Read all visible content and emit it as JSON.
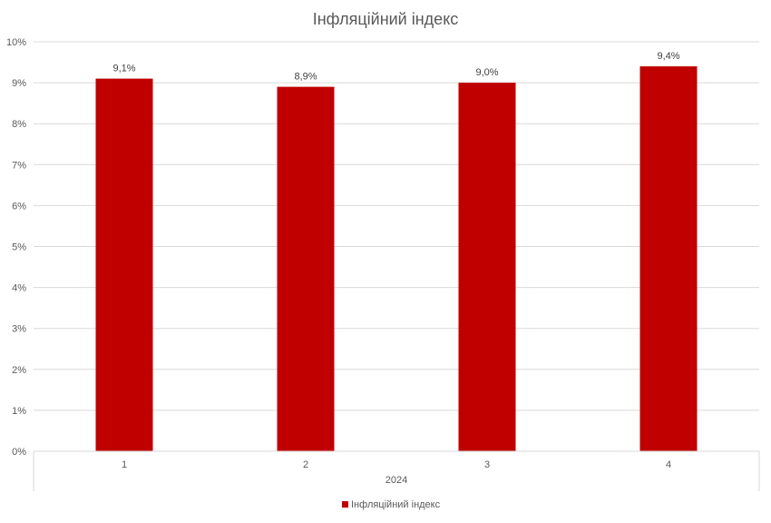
{
  "chart_data": {
    "type": "bar",
    "title": "Інфляційний індекс",
    "categories": [
      "1",
      "2",
      "3",
      "4"
    ],
    "group_label": "2024",
    "series": [
      {
        "name": "Інфляційний індекс",
        "values": [
          9.1,
          8.9,
          9.0,
          9.4
        ],
        "labels": [
          "9,1%",
          "8,9%",
          "9,0%",
          "9,4%"
        ],
        "color": "#C00000"
      }
    ],
    "y_ticks": [
      "0%",
      "1%",
      "2%",
      "3%",
      "4%",
      "5%",
      "6%",
      "7%",
      "8%",
      "9%",
      "10%"
    ],
    "ylim": [
      0,
      10
    ],
    "grid": true,
    "legend_position": "bottom"
  }
}
